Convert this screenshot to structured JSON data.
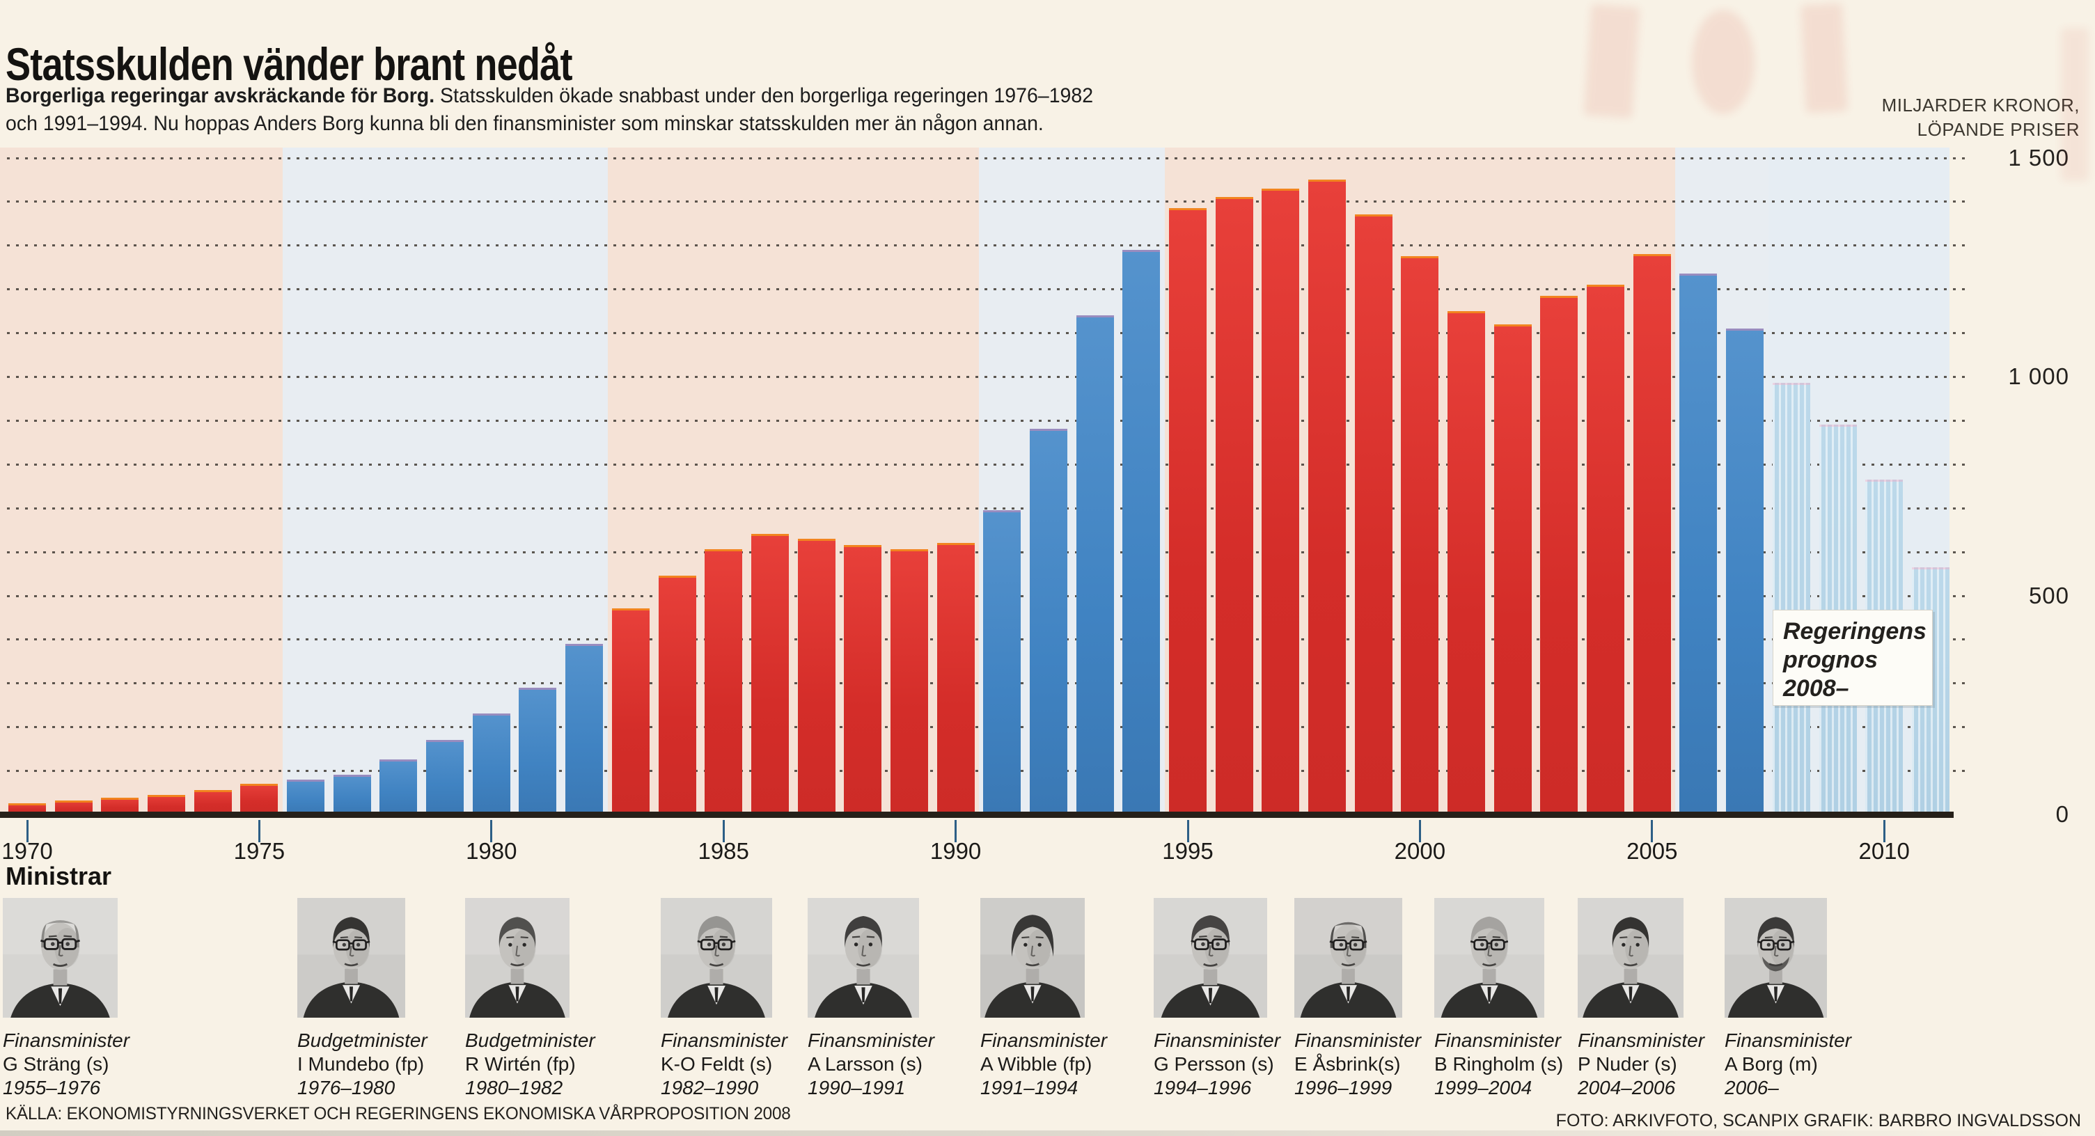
{
  "header": {
    "title": "Statsskulden vänder brant nedåt",
    "subtitle_bold": "Borgerliga regeringar avskräckande för Borg.",
    "subtitle_line1": " Statsskulden ökade snabbast under den borgerliga regeringen 1976–1982",
    "subtitle_line2": "och 1991–1994. Nu hoppas Anders Borg kunna bli den finansminister som minskar statsskulden mer än någon annan.",
    "unit_label_line1": "MILJARDER KRONOR,",
    "unit_label_line2": "LÖPANDE PRISER"
  },
  "chart_data": {
    "type": "bar",
    "title": "Statsskulden vänder brant nedåt",
    "ylabel": "Miljarder kronor, löpande priser",
    "ylim": [
      0,
      1500
    ],
    "grid": "dotted horizontal lines every 100",
    "legend_position": "none",
    "years": [
      1970,
      1971,
      1972,
      1973,
      1974,
      1975,
      1976,
      1977,
      1978,
      1979,
      1980,
      1981,
      1982,
      1983,
      1984,
      1985,
      1986,
      1987,
      1988,
      1989,
      1990,
      1991,
      1992,
      1993,
      1994,
      1995,
      1996,
      1997,
      1998,
      1999,
      2000,
      2001,
      2002,
      2003,
      2004,
      2005,
      2006,
      2007,
      2008,
      2009,
      2010,
      2011
    ],
    "values": [
      25,
      32,
      38,
      45,
      55,
      70,
      80,
      90,
      125,
      170,
      230,
      290,
      390,
      470,
      545,
      605,
      640,
      630,
      615,
      605,
      620,
      695,
      880,
      1140,
      1290,
      1385,
      1410,
      1430,
      1450,
      1370,
      1275,
      1150,
      1120,
      1185,
      1210,
      1280,
      1235,
      1110,
      985,
      890,
      765,
      565
    ],
    "bloc": [
      "s",
      "s",
      "s",
      "s",
      "s",
      "s",
      "borgerlig",
      "borgerlig",
      "borgerlig",
      "borgerlig",
      "borgerlig",
      "borgerlig",
      "borgerlig",
      "s",
      "s",
      "s",
      "s",
      "s",
      "s",
      "s",
      "s",
      "borgerlig",
      "borgerlig",
      "borgerlig",
      "borgerlig",
      "s",
      "s",
      "s",
      "s",
      "s",
      "s",
      "s",
      "s",
      "s",
      "s",
      "s",
      "borgerlig",
      "borgerlig",
      "prognos",
      "prognos",
      "prognos",
      "prognos"
    ],
    "xticks": [
      1970,
      1975,
      1980,
      1985,
      1990,
      1995,
      2000,
      2005,
      2010
    ],
    "yticks": [
      {
        "value": 0,
        "label": "0"
      },
      {
        "value": 500,
        "label": "500"
      },
      {
        "value": 1000,
        "label": "1 000"
      },
      {
        "value": 1500,
        "label": "1 500"
      }
    ],
    "annotation": "Regeringens prognos 2008–",
    "annotation_lines": [
      "Regeringens",
      "prognos",
      "2008–"
    ]
  },
  "colors": {
    "bar_socialdemokratisk": "#d9302c",
    "bar_borgerlig": "#4386c4",
    "bar_prognos": "#b7d4e6",
    "band_s_era": "#f5e2d6",
    "band_borgerlig_era": "#e8edf2",
    "paper": "#f8f2e6",
    "axis": "#262019",
    "tick": "#2d5f86"
  },
  "ministers_heading": "Ministrar",
  "ministers": [
    {
      "title": "Finansminister",
      "name": "G Sträng (s)",
      "years": "1955–1976"
    },
    {
      "title": "Budgetminister",
      "name": "I Mundebo (fp)",
      "years": "1976–1980"
    },
    {
      "title": "Budgetminister",
      "name": "R Wirtén (fp)",
      "years": "1980–1982"
    },
    {
      "title": "Finansminister",
      "name": "K-O Feldt (s)",
      "years": "1982–1990"
    },
    {
      "title": "Finansminister",
      "name": "A Larsson (s)",
      "years": "1990–1991"
    },
    {
      "title": "Finansminister",
      "name": "A Wibble (fp)",
      "years": "1991–1994"
    },
    {
      "title": "Finansminister",
      "name": "G Persson (s)",
      "years": "1994–1996"
    },
    {
      "title": "Finansminister",
      "name": "E Åsbrink(s)",
      "years": "1996–1999"
    },
    {
      "title": "Finansminister",
      "name": "B Ringholm (s)",
      "years": "1999–2004"
    },
    {
      "title": "Finansminister",
      "name": "P Nuder (s)",
      "years": "2004–2006"
    },
    {
      "title": "Finansminister",
      "name": "A Borg (m)",
      "years": "2006–"
    }
  ],
  "footer": {
    "source": "KÄLLA: EKONOMISTYRNINGSVERKET OCH REGERINGENS EKONOMISKA VÅRPROPOSITION 2008",
    "credit": "FOTO: ARKIVFOTO, SCANPIX GRAFIK: BARBRO INGVALDSSON"
  }
}
